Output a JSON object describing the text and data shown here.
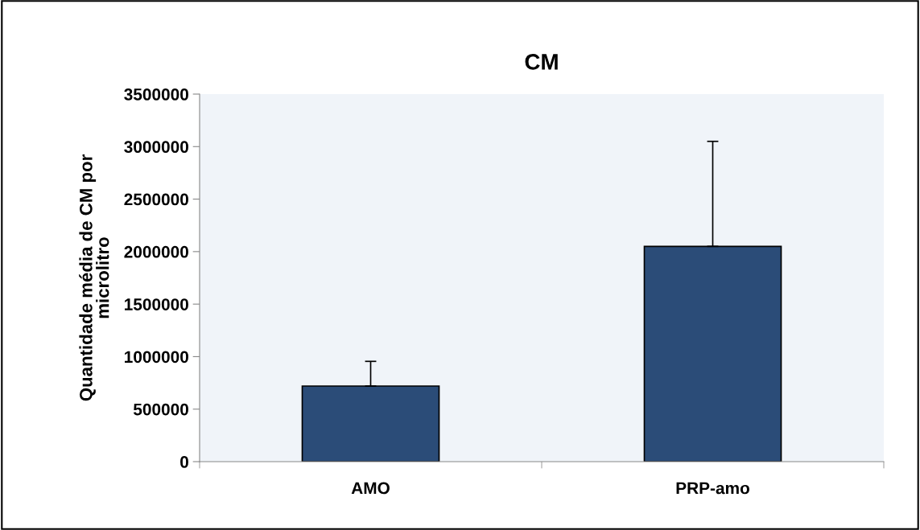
{
  "chart_data": {
    "type": "bar",
    "title": "CM",
    "ylabel": "Quantidade média de CM por\nmicrolitro",
    "categories": [
      "AMO",
      "PRP-amo"
    ],
    "values": [
      720000,
      2050000
    ],
    "errors": [
      [
        720000,
        955000
      ],
      [
        2050000,
        3050000
      ]
    ],
    "color": "#2b4c78",
    "ylim": [
      0,
      3500000
    ],
    "yticks": [
      0,
      500000,
      1000000,
      1500000,
      2000000,
      2500000,
      3000000,
      3500000
    ],
    "grid": false,
    "legend": false
  }
}
